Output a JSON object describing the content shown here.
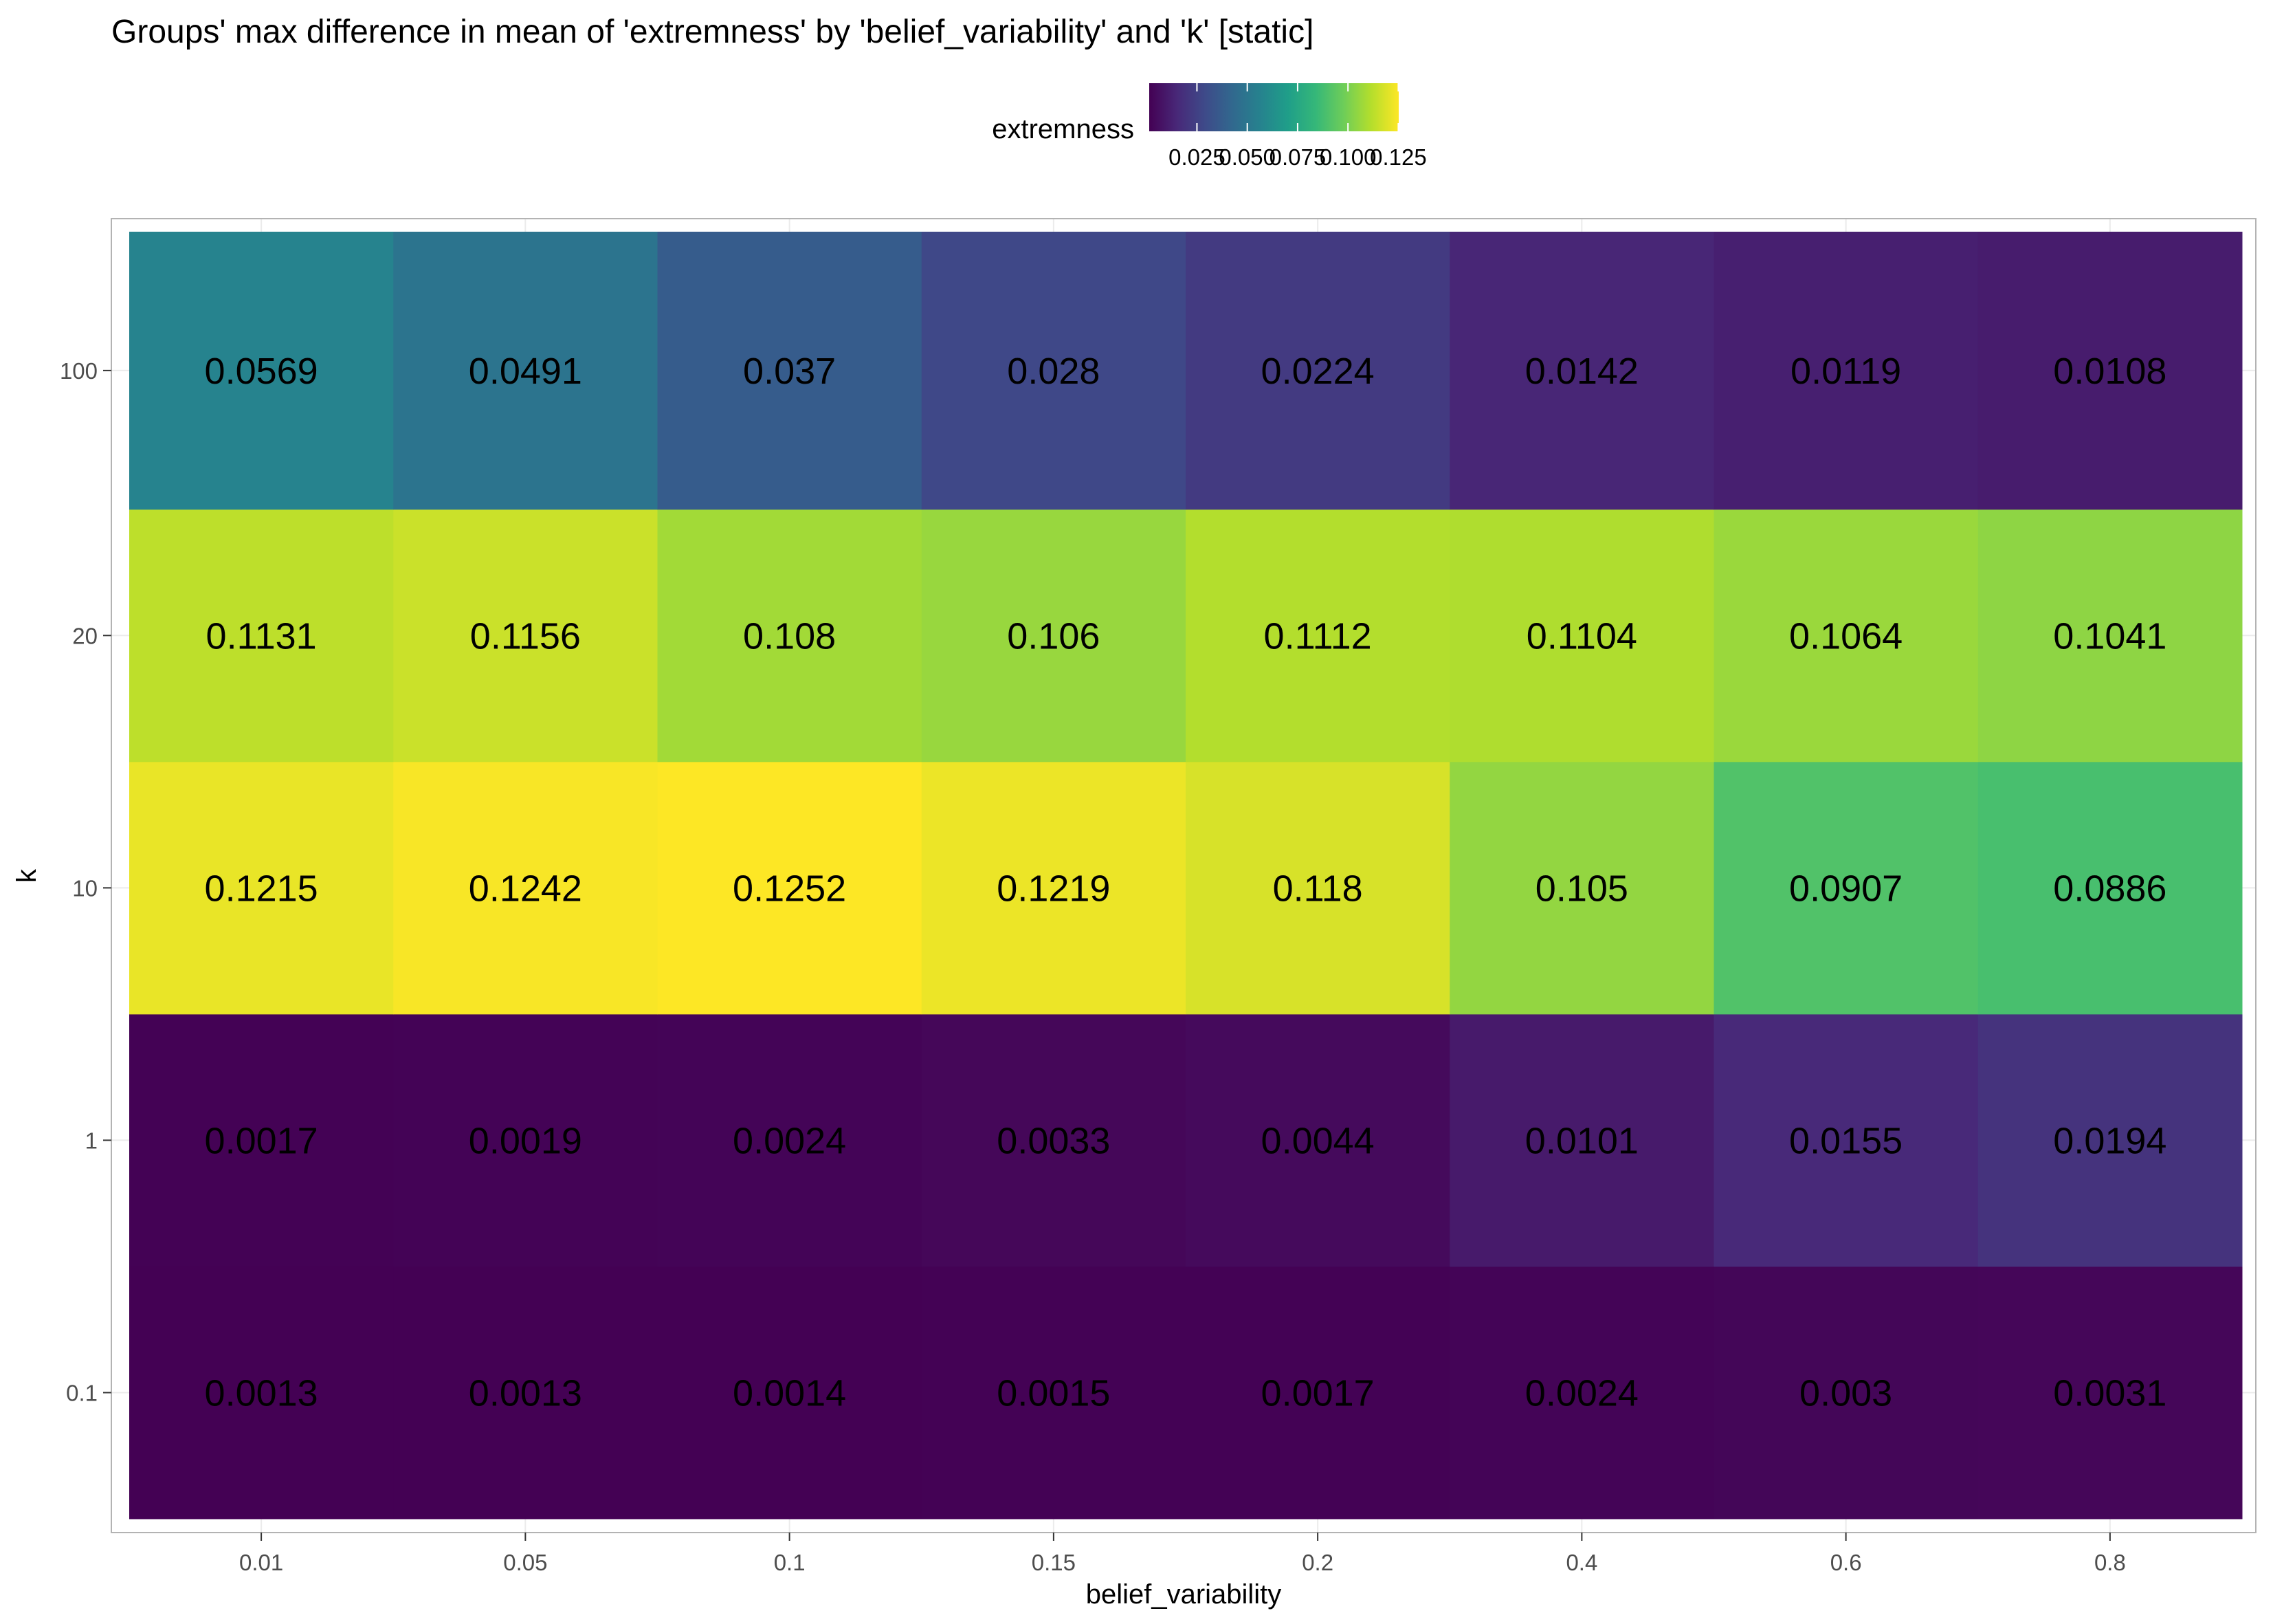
{
  "chart_data": {
    "type": "heatmap",
    "title": "Groups' max difference in mean of 'extremness' by  'belief_variability' and 'k' [static]",
    "xlabel": "belief_variability",
    "ylabel": "k",
    "x_categories": [
      "0.01",
      "0.05",
      "0.1",
      "0.15",
      "0.2",
      "0.4",
      "0.6",
      "0.8"
    ],
    "y_categories": [
      "0.1",
      "1",
      "10",
      "20",
      "100"
    ],
    "y_row_heights": [
      1,
      1,
      1,
      1,
      1.1
    ],
    "values": [
      [
        0.0013,
        0.0013,
        0.0014,
        0.0015,
        0.0017,
        0.0024,
        0.003,
        0.0031
      ],
      [
        0.0017,
        0.0019,
        0.0024,
        0.0033,
        0.0044,
        0.0101,
        0.0155,
        0.0194
      ],
      [
        0.1215,
        0.1242,
        0.1252,
        0.1219,
        0.118,
        0.105,
        0.0907,
        0.0886
      ],
      [
        0.1131,
        0.1156,
        0.108,
        0.106,
        0.1112,
        0.1104,
        0.1064,
        0.1041
      ],
      [
        0.0569,
        0.0491,
        0.037,
        0.028,
        0.0224,
        0.0142,
        0.0119,
        0.0108
      ]
    ],
    "cell_labels": [
      [
        "0.0013",
        "0.0013",
        "0.0014",
        "0.0015",
        "0.0017",
        "0.0024",
        "0.003",
        "0.0031"
      ],
      [
        "0.0017",
        "0.0019",
        "0.0024",
        "0.0033",
        "0.0044",
        "0.0101",
        "0.0155",
        "0.0194"
      ],
      [
        "0.1215",
        "0.1242",
        "0.1252",
        "0.1219",
        "0.118",
        "0.105",
        "0.0907",
        "0.0886"
      ],
      [
        "0.1131",
        "0.1156",
        "0.108",
        "0.106",
        "0.1112",
        "0.1104",
        "0.1064",
        "0.1041"
      ],
      [
        "0.0569",
        "0.0491",
        "0.037",
        "0.028",
        "0.0224",
        "0.0142",
        "0.0119",
        "0.0108"
      ]
    ],
    "color_scale": {
      "name": "viridis",
      "min": 0.0013,
      "max": 0.1252,
      "stops": [
        "#440154",
        "#482878",
        "#3E4A89",
        "#31688E",
        "#26828E",
        "#1F9E89",
        "#35B779",
        "#6DCD59",
        "#B4DE2C",
        "#FDE725"
      ]
    },
    "legend": {
      "title": "extremness",
      "position": "top",
      "ticks": [
        0.025,
        0.05,
        0.075,
        0.1,
        0.125
      ],
      "tick_labels": [
        "0.025",
        "0.050",
        "0.075",
        "0.100",
        "0.125"
      ]
    },
    "panel_border": "#b3b3b3",
    "grid": true,
    "grid_color": "#ebebeb"
  }
}
